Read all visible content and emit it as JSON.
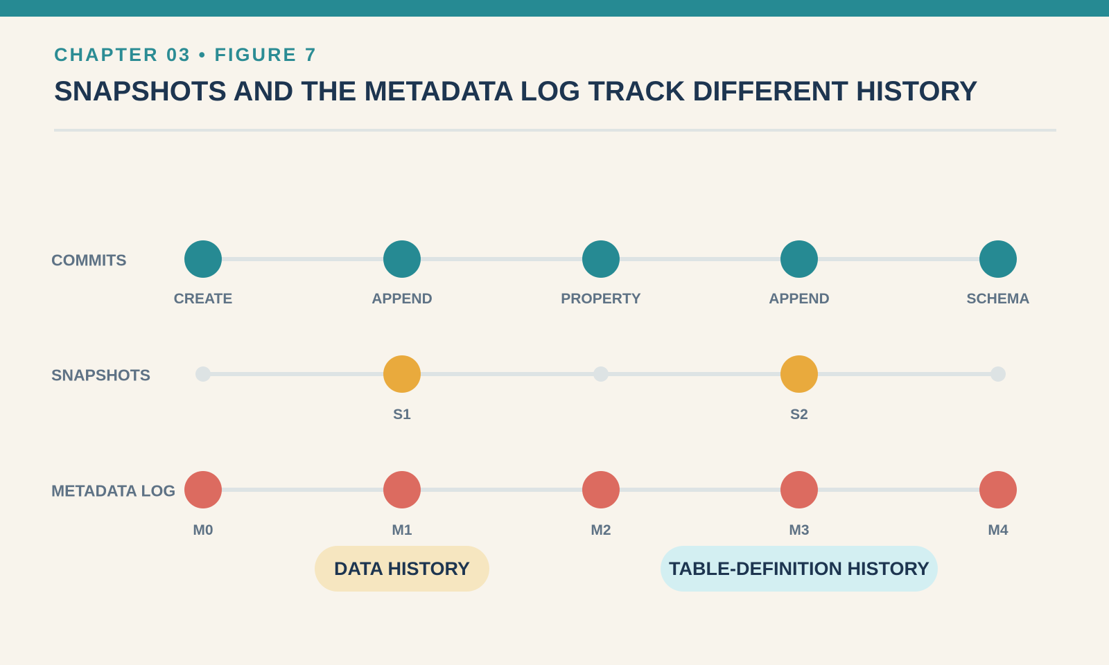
{
  "header": {
    "eyebrow": "CHAPTER 03 • FIGURE 7",
    "title": "SNAPSHOTS AND THE METADATA LOG TRACK DIFFERENT HISTORY"
  },
  "colors": {
    "accent": "#268a93",
    "commit": "#268a93",
    "snapshot": "#e9aa3d",
    "metadata": "#dc6b60",
    "track": "#dde3e4",
    "background": "#f8f4ec"
  },
  "rows": [
    {
      "id": "commits",
      "label": "COMMITS",
      "nodes": [
        {
          "label": "CREATE",
          "filled": true
        },
        {
          "label": "APPEND",
          "filled": true
        },
        {
          "label": "PROPERTY",
          "filled": true
        },
        {
          "label": "APPEND",
          "filled": true
        },
        {
          "label": "SCHEMA",
          "filled": true
        }
      ]
    },
    {
      "id": "snapshots",
      "label": "SNAPSHOTS",
      "nodes": [
        {
          "label": "",
          "filled": false
        },
        {
          "label": "S1",
          "filled": true
        },
        {
          "label": "",
          "filled": false
        },
        {
          "label": "S2",
          "filled": true
        },
        {
          "label": "",
          "filled": false
        }
      ]
    },
    {
      "id": "metadata",
      "label": "METADATA LOG",
      "nodes": [
        {
          "label": "M0",
          "filled": true
        },
        {
          "label": "M1",
          "filled": true
        },
        {
          "label": "M2",
          "filled": true
        },
        {
          "label": "M3",
          "filled": true
        },
        {
          "label": "M4",
          "filled": true
        }
      ]
    }
  ],
  "groups": [
    {
      "label": "DATA HISTORY",
      "style": "data"
    },
    {
      "label": "TABLE-DEFINITION HISTORY",
      "style": "table"
    }
  ]
}
